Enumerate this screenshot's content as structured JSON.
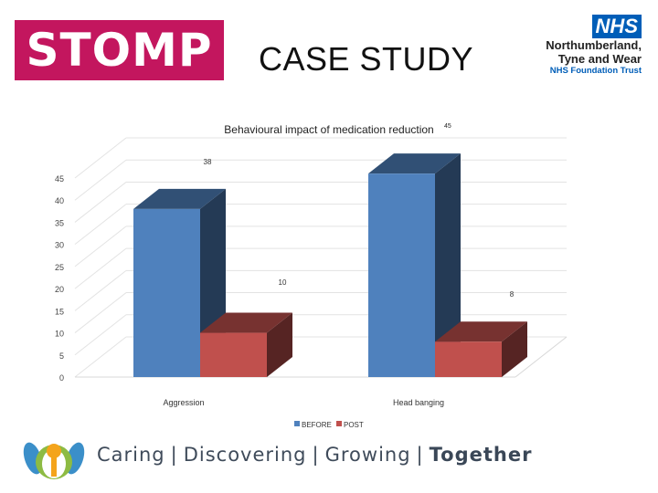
{
  "header": {
    "logo_text": "STOMP",
    "title": "CASE STUDY",
    "nhs_mark": "NHS",
    "trust_lines": [
      "Northumberland,",
      "Tyne and Wear"
    ],
    "trust_sub": "NHS Foundation Trust"
  },
  "chart_data": {
    "type": "bar",
    "title": "Behavioural impact of medication reduction",
    "title_marker": "45",
    "categories": [
      "Aggression",
      "Head banging"
    ],
    "series": [
      {
        "name": "BEFORE",
        "values": [
          38,
          46
        ],
        "color": "#4f81bd"
      },
      {
        "name": "POST",
        "values": [
          10,
          8
        ],
        "color": "#c0504d"
      }
    ],
    "data_labels": [
      {
        "text": "38",
        "series": 0,
        "category": 0
      },
      {
        "text": "10",
        "series": 1,
        "category": 0
      },
      {
        "text": "8",
        "series": 1,
        "category": 1
      }
    ],
    "yticks": [
      "0",
      "5",
      "10",
      "15",
      "20",
      "25",
      "30",
      "35",
      "40",
      "45"
    ],
    "ylim": [
      0,
      45
    ],
    "legend_position": "bottom",
    "grid": true,
    "projection": "3d"
  },
  "footer": {
    "words": [
      "Caring",
      "Discovering",
      "Growing",
      "Together"
    ],
    "separator": "|"
  }
}
